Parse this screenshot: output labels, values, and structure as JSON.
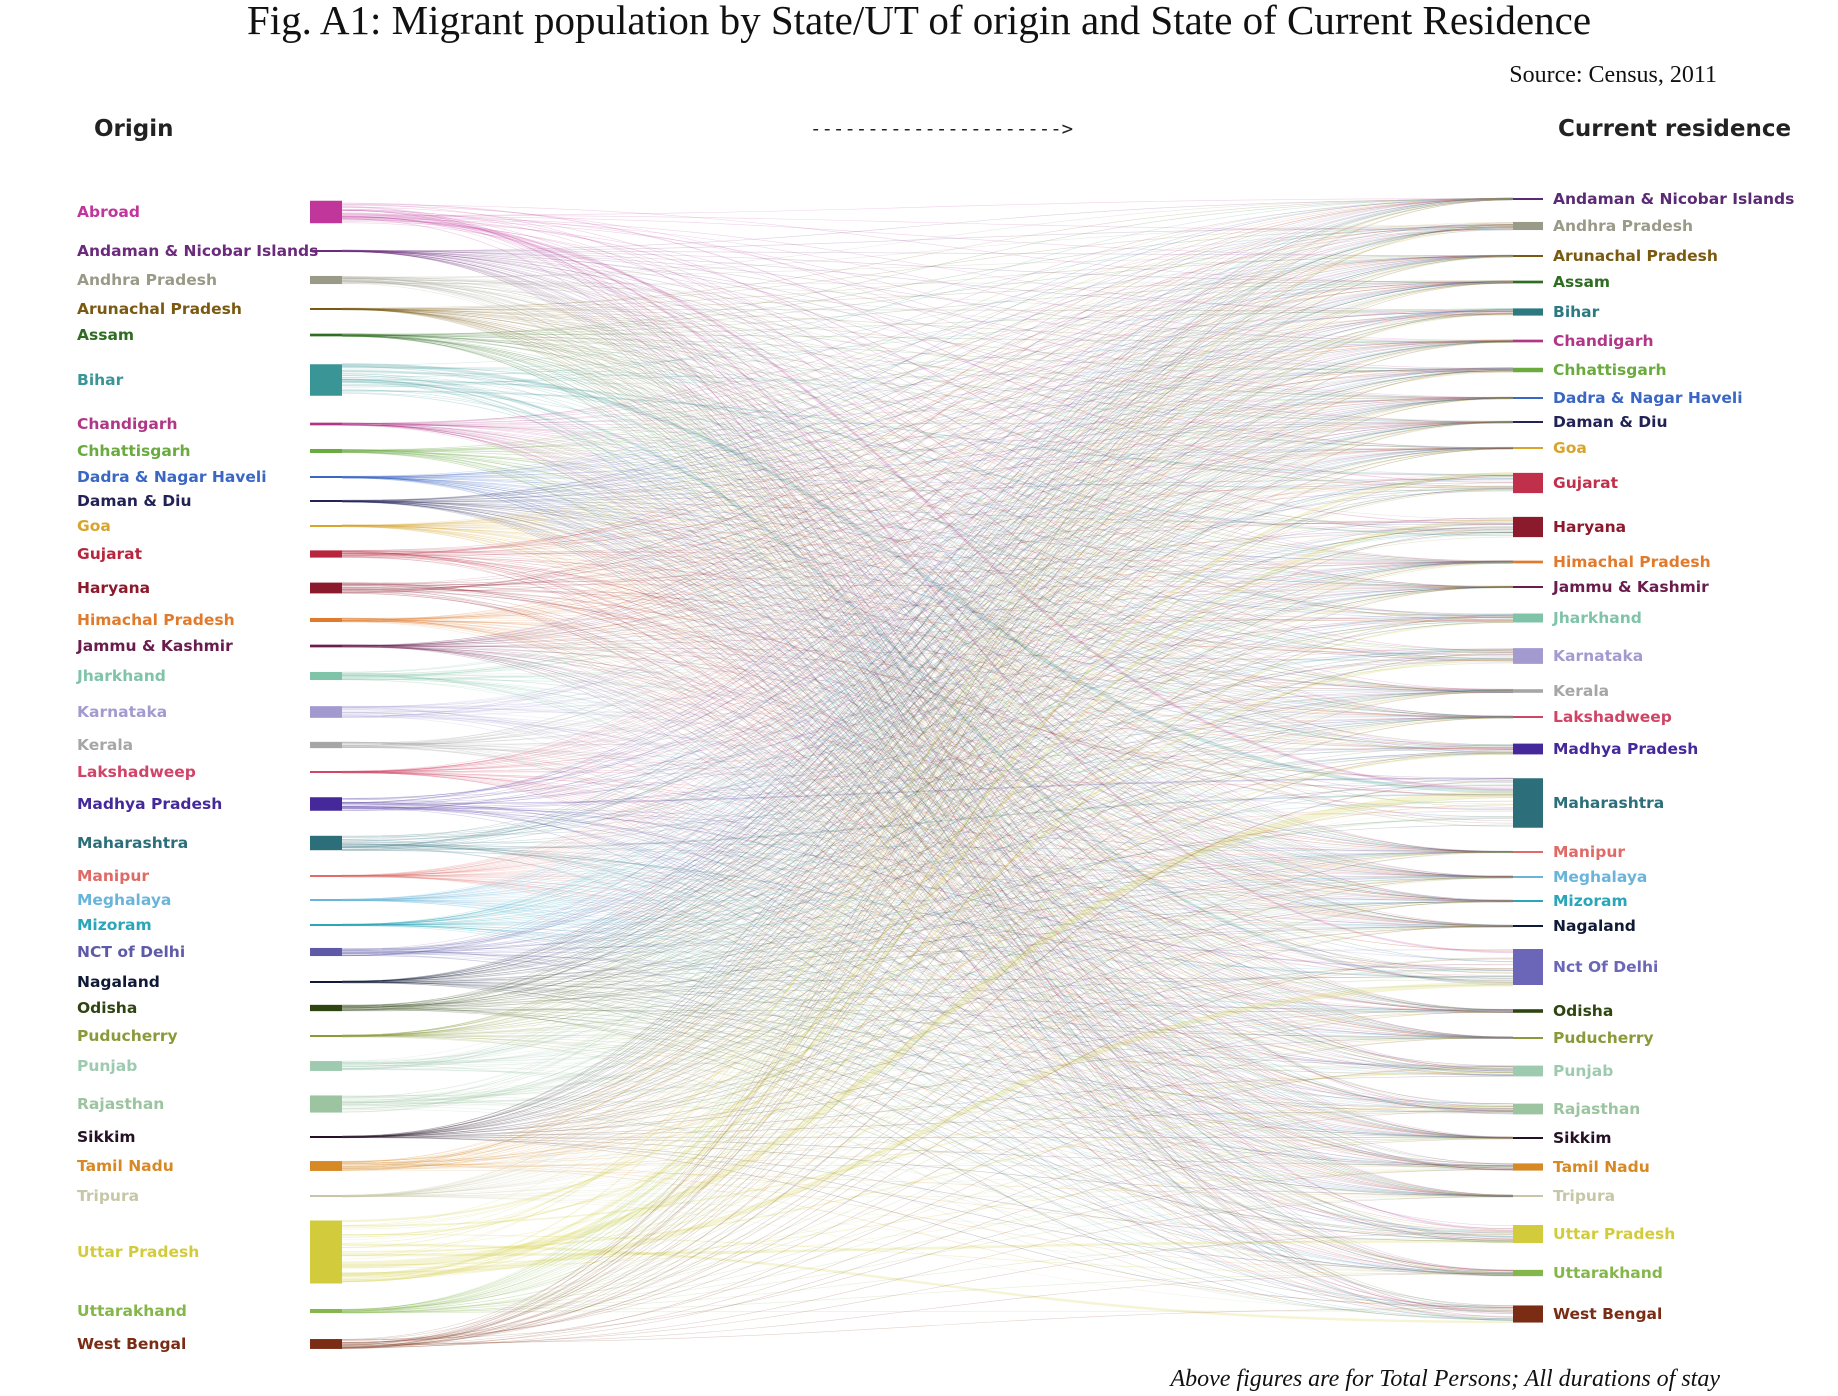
{
  "header": {
    "title": "Fig. A1: Migrant population by State/UT of origin and State of Current Residence",
    "source": "Source: Census, 2011",
    "origin_label": "Origin",
    "arrow": "---------------------->",
    "residence_label": "Current residence",
    "footnote": "Above figures are for Total Persons; All durations of stay"
  },
  "chart_data": {
    "type": "sankey",
    "left_title": "Origin",
    "right_title": "Current residence",
    "origins": [
      {
        "name": "Abroad",
        "color": "#c0369a",
        "size": 5
      },
      {
        "name": "Andaman & Nicobar Islands",
        "color": "#6b2a7b",
        "size": 0.3
      },
      {
        "name": "Andhra Pradesh",
        "color": "#9a9a88",
        "size": 1.8
      },
      {
        "name": "Arunachal Pradesh",
        "color": "#7a5a12",
        "size": 0.3
      },
      {
        "name": "Assam",
        "color": "#2f6d22",
        "size": 0.6
      },
      {
        "name": "Bihar",
        "color": "#3a9596",
        "size": 7
      },
      {
        "name": "Chandigarh",
        "color": "#b03787",
        "size": 0.6
      },
      {
        "name": "Chhattisgarh",
        "color": "#6aaa3e",
        "size": 0.9
      },
      {
        "name": "Dadra & Nagar Haveli",
        "color": "#3a66c4",
        "size": 0.2
      },
      {
        "name": "Daman & Diu",
        "color": "#222255",
        "size": 0.2
      },
      {
        "name": "Goa",
        "color": "#d8a42e",
        "size": 0.2
      },
      {
        "name": "Gujarat",
        "color": "#b8253c",
        "size": 1.6
      },
      {
        "name": "Haryana",
        "color": "#8b1a2c",
        "size": 2.4
      },
      {
        "name": "Himachal Pradesh",
        "color": "#e07a2c",
        "size": 0.9
      },
      {
        "name": "Jammu & Kashmir",
        "color": "#6a1c4c",
        "size": 0.6
      },
      {
        "name": "Jharkhand",
        "color": "#7fc3a8",
        "size": 1.8
      },
      {
        "name": "Karnataka",
        "color": "#a39ad0",
        "size": 2.6
      },
      {
        "name": "Kerala",
        "color": "#a6a6a6",
        "size": 1.4
      },
      {
        "name": "Lakshadweep",
        "color": "#d04466",
        "size": 0.2
      },
      {
        "name": "Madhya Pradesh",
        "color": "#45299a",
        "size": 3
      },
      {
        "name": "Maharashtra",
        "color": "#2c6f7a",
        "size": 3.2
      },
      {
        "name": "Manipur",
        "color": "#e06a66",
        "size": 0.3
      },
      {
        "name": "Meghalaya",
        "color": "#6ab4da",
        "size": 0.3
      },
      {
        "name": "Mizoram",
        "color": "#2aa6b8",
        "size": 0.3
      },
      {
        "name": "NCT of Delhi",
        "color": "#5e5aa8",
        "size": 1.8
      },
      {
        "name": "Nagaland",
        "color": "#101a36",
        "size": 0.3
      },
      {
        "name": "Odisha",
        "color": "#2e4512",
        "size": 1.4
      },
      {
        "name": "Puducherry",
        "color": "#8a9a3a",
        "size": 0.3
      },
      {
        "name": "Punjab",
        "color": "#9ecab0",
        "size": 2.2
      },
      {
        "name": "Rajasthan",
        "color": "#9cc4a0",
        "size": 3.8
      },
      {
        "name": "Sikkim",
        "color": "#251026",
        "size": 0.2
      },
      {
        "name": "Tamil Nadu",
        "color": "#d78926",
        "size": 2.2
      },
      {
        "name": "Tripura",
        "color": "#c7c7a8",
        "size": 0.3
      },
      {
        "name": "Uttar Pradesh",
        "color": "#d2cc3c",
        "size": 14
      },
      {
        "name": "Uttarakhand",
        "color": "#84b64c",
        "size": 0.9
      },
      {
        "name": "West Bengal",
        "color": "#7a2c14",
        "size": 2.2
      }
    ],
    "destinations": [
      {
        "name": "Andaman & Nicobar Islands",
        "color": "#5a2a72",
        "size": 0.3
      },
      {
        "name": "Andhra Pradesh",
        "color": "#9a9a88",
        "size": 1.8
      },
      {
        "name": "Arunachal Pradesh",
        "color": "#7a5a12",
        "size": 0.3
      },
      {
        "name": "Assam",
        "color": "#2f6d22",
        "size": 0.6
      },
      {
        "name": "Bihar",
        "color": "#2c7a80",
        "size": 1.6
      },
      {
        "name": "Chandigarh",
        "color": "#b03787",
        "size": 0.6
      },
      {
        "name": "Chhattisgarh",
        "color": "#6aaa3e",
        "size": 1
      },
      {
        "name": "Dadra & Nagar Haveli",
        "color": "#3a66c4",
        "size": 0.2
      },
      {
        "name": "Daman & Diu",
        "color": "#222255",
        "size": 0.2
      },
      {
        "name": "Goa",
        "color": "#d8a42e",
        "size": 0.3
      },
      {
        "name": "Gujarat",
        "color": "#c0304a",
        "size": 4.5
      },
      {
        "name": "Haryana",
        "color": "#8b1a2c",
        "size": 4.5
      },
      {
        "name": "Himachal Pradesh",
        "color": "#e07a2c",
        "size": 0.6
      },
      {
        "name": "Jammu & Kashmir",
        "color": "#6a1c4c",
        "size": 0.4
      },
      {
        "name": "Jharkhand",
        "color": "#7fc3a8",
        "size": 2
      },
      {
        "name": "Karnataka",
        "color": "#a39ad0",
        "size": 3.5
      },
      {
        "name": "Kerala",
        "color": "#a6a6a6",
        "size": 0.8
      },
      {
        "name": "Lakshadweep",
        "color": "#d04466",
        "size": 0.2
      },
      {
        "name": "Madhya Pradesh",
        "color": "#45299a",
        "size": 2.4
      },
      {
        "name": "Maharashtra",
        "color": "#2c6f7a",
        "size": 11
      },
      {
        "name": "Manipur",
        "color": "#e06a66",
        "size": 0.2
      },
      {
        "name": "Meghalaya",
        "color": "#6ab4da",
        "size": 0.2
      },
      {
        "name": "Mizoram",
        "color": "#2aa6b8",
        "size": 0.2
      },
      {
        "name": "Nagaland",
        "color": "#101a36",
        "size": 0.2
      },
      {
        "name": "Nct Of Delhi",
        "color": "#6b66b8",
        "size": 8
      },
      {
        "name": "Odisha",
        "color": "#2e4512",
        "size": 0.8
      },
      {
        "name": "Puducherry",
        "color": "#8a9a3a",
        "size": 0.3
      },
      {
        "name": "Punjab",
        "color": "#9ecab0",
        "size": 2.4
      },
      {
        "name": "Rajasthan",
        "color": "#9cc4a0",
        "size": 2.4
      },
      {
        "name": "Sikkim",
        "color": "#251026",
        "size": 0.2
      },
      {
        "name": "Tamil Nadu",
        "color": "#d78926",
        "size": 1.6
      },
      {
        "name": "Tripura",
        "color": "#c7c7a8",
        "size": 0.3
      },
      {
        "name": "Uttar Pradesh",
        "color": "#d2cc3c",
        "size": 4
      },
      {
        "name": "Uttarakhand",
        "color": "#84b64c",
        "size": 1.4
      },
      {
        "name": "West Bengal",
        "color": "#7a2c14",
        "size": 3.8
      }
    ]
  }
}
